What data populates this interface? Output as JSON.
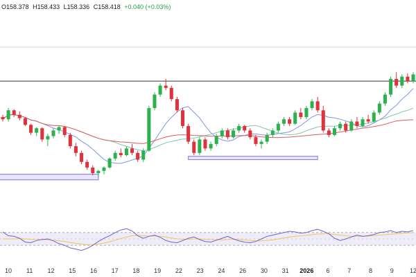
{
  "ohlc": {
    "open_label": "O",
    "open": "158.378",
    "high_label": "H",
    "high": "158.433",
    "low_label": "L",
    "low": "158.336",
    "close_label": "C",
    "close": "158.418",
    "change": "+0.040 (+0.03%)"
  },
  "colors": {
    "bull": "#2db14e",
    "bear": "#e0323a",
    "ma_fast": "#7d95e8",
    "ma_mid": "#7cc8a8",
    "ma_slow": "#e05a5a",
    "zone_stroke": "#8c6ee6",
    "zone_fill": "#e8e6fb",
    "rsi_line": "#6b63c9",
    "rsi_signal": "#f2c45a",
    "rsi_band": "#efecfa",
    "hline": "#333333"
  },
  "x_axis": {
    "ticks": [
      {
        "label": "10",
        "bold": false
      },
      {
        "label": "11",
        "bold": false
      },
      {
        "label": "12",
        "bold": false
      },
      {
        "label": "15",
        "bold": false
      },
      {
        "label": "16",
        "bold": false
      },
      {
        "label": "17",
        "bold": false
      },
      {
        "label": "18",
        "bold": false
      },
      {
        "label": "19",
        "bold": false
      },
      {
        "label": "22",
        "bold": false
      },
      {
        "label": "23",
        "bold": false
      },
      {
        "label": "24",
        "bold": false
      },
      {
        "label": "26",
        "bold": false
      },
      {
        "label": "30",
        "bold": false
      },
      {
        "label": "31",
        "bold": false
      },
      {
        "label": "2026",
        "bold": true
      },
      {
        "label": "6",
        "bold": false
      },
      {
        "label": "7",
        "bold": false
      },
      {
        "label": "8",
        "bold": false
      },
      {
        "label": "9",
        "bold": false
      },
      {
        "label": "12",
        "bold": false
      }
    ]
  },
  "chart_data": {
    "type": "candlestick",
    "y_units": "relative price level 0-100 (no price scale visible)",
    "ylim": [
      0,
      100
    ],
    "candles": [
      [
        50,
        52,
        46,
        48
      ],
      [
        48,
        58,
        46,
        56
      ],
      [
        56,
        57,
        50,
        52
      ],
      [
        52,
        55,
        47,
        49
      ],
      [
        49,
        50,
        42,
        43
      ],
      [
        43,
        44,
        34,
        36
      ],
      [
        36,
        41,
        33,
        40
      ],
      [
        40,
        41,
        28,
        30
      ],
      [
        30,
        35,
        24,
        33
      ],
      [
        33,
        40,
        31,
        38
      ],
      [
        38,
        42,
        35,
        41
      ],
      [
        41,
        42,
        32,
        34
      ],
      [
        34,
        36,
        22,
        24
      ],
      [
        24,
        27,
        15,
        18
      ],
      [
        18,
        20,
        8,
        10
      ],
      [
        10,
        12,
        3,
        5
      ],
      [
        5,
        7,
        -2,
        0
      ],
      [
        0,
        3,
        -4,
        2
      ],
      [
        2,
        6,
        -1,
        5
      ],
      [
        5,
        14,
        4,
        13
      ],
      [
        13,
        20,
        11,
        18
      ],
      [
        18,
        22,
        14,
        16
      ],
      [
        16,
        24,
        15,
        22
      ],
      [
        22,
        26,
        16,
        18
      ],
      [
        18,
        20,
        10,
        12
      ],
      [
        12,
        22,
        10,
        20
      ],
      [
        20,
        60,
        19,
        58
      ],
      [
        58,
        72,
        56,
        70
      ],
      [
        70,
        80,
        68,
        78
      ],
      [
        78,
        84,
        74,
        76
      ],
      [
        76,
        78,
        64,
        66
      ],
      [
        66,
        68,
        54,
        56
      ],
      [
        56,
        58,
        40,
        42
      ],
      [
        42,
        44,
        26,
        28
      ],
      [
        28,
        30,
        16,
        18
      ],
      [
        18,
        32,
        16,
        30
      ],
      [
        30,
        32,
        20,
        22
      ],
      [
        22,
        28,
        20,
        26
      ],
      [
        26,
        35,
        24,
        33
      ],
      [
        33,
        40,
        31,
        38
      ],
      [
        38,
        40,
        30,
        32
      ],
      [
        32,
        40,
        31,
        38
      ],
      [
        38,
        44,
        36,
        42
      ],
      [
        42,
        43,
        36,
        38
      ],
      [
        38,
        40,
        30,
        32
      ],
      [
        32,
        34,
        24,
        26
      ],
      [
        26,
        30,
        22,
        28
      ],
      [
        28,
        36,
        26,
        34
      ],
      [
        34,
        40,
        32,
        38
      ],
      [
        38,
        46,
        36,
        44
      ],
      [
        44,
        50,
        42,
        48
      ],
      [
        48,
        50,
        42,
        44
      ],
      [
        44,
        56,
        43,
        54
      ],
      [
        54,
        58,
        48,
        50
      ],
      [
        50,
        60,
        48,
        58
      ],
      [
        58,
        66,
        56,
        64
      ],
      [
        64,
        68,
        54,
        56
      ],
      [
        56,
        60,
        36,
        38
      ],
      [
        38,
        40,
        32,
        34
      ],
      [
        34,
        42,
        33,
        40
      ],
      [
        40,
        46,
        38,
        44
      ],
      [
        44,
        46,
        36,
        38
      ],
      [
        38,
        48,
        37,
        46
      ],
      [
        46,
        50,
        40,
        42
      ],
      [
        42,
        50,
        41,
        48
      ],
      [
        48,
        52,
        44,
        46
      ],
      [
        46,
        56,
        45,
        54
      ],
      [
        54,
        64,
        52,
        62
      ],
      [
        62,
        72,
        60,
        70
      ],
      [
        70,
        86,
        68,
        84
      ],
      [
        84,
        90,
        76,
        78
      ],
      [
        78,
        88,
        76,
        86
      ],
      [
        86,
        89,
        80,
        82
      ],
      [
        82,
        90,
        80,
        88
      ]
    ],
    "zones": [
      {
        "from_index": 0,
        "to_index": 17,
        "low": -6,
        "high": -1
      },
      {
        "from_index": 33,
        "to_index": 56,
        "low": 12,
        "high": 15
      }
    ],
    "horizontal_line": 82,
    "rsi_ylim": [
      0,
      100
    ],
    "rsi_band": [
      30,
      70
    ],
    "rsi": [
      72,
      60,
      58,
      52,
      40,
      38,
      45,
      48,
      50,
      44,
      35,
      30,
      22,
      18,
      14,
      20,
      30,
      42,
      52,
      60,
      70,
      78,
      82,
      75,
      60,
      52,
      58,
      62,
      55,
      45,
      40,
      38,
      45,
      52,
      56,
      48,
      42,
      40,
      46,
      52,
      58,
      50,
      44,
      40,
      38,
      42,
      50,
      58,
      62,
      66,
      70,
      74,
      72,
      68,
      70,
      76,
      80,
      74,
      66,
      52,
      45,
      50,
      56,
      62,
      58,
      60,
      64,
      70,
      72,
      76,
      70,
      74,
      72,
      76
    ],
    "rsi_signal": [
      50,
      50,
      50,
      51,
      50,
      49,
      48,
      48,
      47,
      46,
      44,
      42,
      39,
      36,
      34,
      32,
      32,
      34,
      37,
      41,
      46,
      51,
      56,
      60,
      61,
      60,
      59,
      59,
      58,
      56,
      53,
      50,
      49,
      49,
      50,
      50,
      49,
      48,
      47,
      47,
      48,
      49,
      48,
      47,
      45,
      44,
      44,
      45,
      47,
      50,
      53,
      56,
      58,
      60,
      61,
      63,
      65,
      66,
      66,
      64,
      62,
      60,
      58,
      58,
      58,
      59,
      60,
      62,
      63,
      65,
      66,
      68,
      69,
      70
    ]
  }
}
